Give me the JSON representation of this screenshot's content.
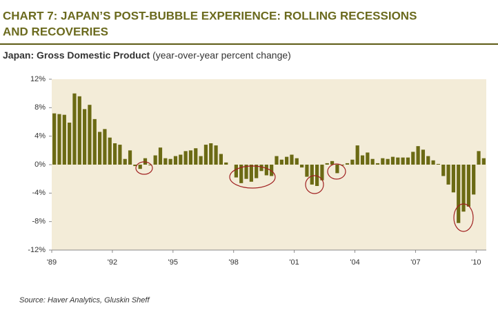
{
  "chart_data": {
    "type": "bar",
    "title_line1": "CHART 7: JAPAN’S POST-BUBBLE EXPERIENCE: ROLLING RECESSIONS",
    "title_line2": "AND RECOVERIES",
    "subtitle_bold": "Japan: Gross Domestic Product",
    "subtitle_rest": "(year-over-year percent change)",
    "source": "Source: Haver Analytics, Gluskin Sheff",
    "color": "#6b6a14",
    "categories": [
      "'89",
      null,
      null,
      null,
      null,
      null,
      null,
      null,
      null,
      null,
      null,
      null,
      "'92",
      null,
      null,
      null,
      null,
      null,
      null,
      null,
      null,
      null,
      null,
      null,
      "'95",
      null,
      null,
      null,
      null,
      null,
      null,
      null,
      null,
      null,
      null,
      null,
      "'98",
      null,
      null,
      null,
      null,
      null,
      null,
      null,
      null,
      null,
      null,
      null,
      "'01",
      null,
      null,
      null,
      null,
      null,
      null,
      null,
      null,
      null,
      null,
      null,
      "'04",
      null,
      null,
      null,
      null,
      null,
      null,
      null,
      null,
      null,
      null,
      null,
      "'07",
      null,
      null,
      null,
      null,
      null,
      null,
      null,
      null,
      null,
      null,
      null,
      "'10",
      null
    ],
    "values": [
      7.2,
      7.1,
      7.0,
      5.9,
      10.0,
      9.6,
      7.8,
      8.4,
      6.4,
      4.6,
      5.0,
      3.8,
      3.0,
      2.8,
      0.8,
      2.0,
      -0.2,
      -0.6,
      0.9,
      -0.1,
      1.3,
      2.4,
      0.9,
      0.8,
      1.2,
      1.4,
      1.9,
      2.0,
      2.3,
      1.2,
      2.8,
      3.0,
      2.7,
      1.5,
      0.3,
      0.0,
      -1.8,
      -2.6,
      -2.0,
      -2.4,
      -1.9,
      -0.9,
      -1.5,
      -1.6,
      1.2,
      0.7,
      1.1,
      1.4,
      0.9,
      -0.4,
      -1.7,
      -2.8,
      -3.0,
      -2.2,
      0.2,
      0.5,
      -1.2,
      -0.1,
      0.2,
      0.7,
      2.7,
      1.3,
      1.7,
      0.8,
      0.2,
      0.9,
      0.8,
      1.1,
      1.0,
      1.0,
      1.0,
      1.8,
      2.6,
      2.1,
      1.2,
      0.6,
      0.1,
      -1.6,
      -2.8,
      -3.9,
      -8.2,
      -6.6,
      -5.9,
      -4.2,
      1.9,
      0.9
    ],
    "ylim": [
      -12,
      12
    ],
    "yticks": [
      {
        "value": -12,
        "label": "-12%"
      },
      {
        "value": -8,
        "label": "-8%"
      },
      {
        "value": -4,
        "label": "-4%"
      },
      {
        "value": 0,
        "label": "0%"
      },
      {
        "value": 4,
        "label": "4%"
      },
      {
        "value": 8,
        "label": "8%"
      },
      {
        "value": 12,
        "label": "12%"
      }
    ]
  }
}
